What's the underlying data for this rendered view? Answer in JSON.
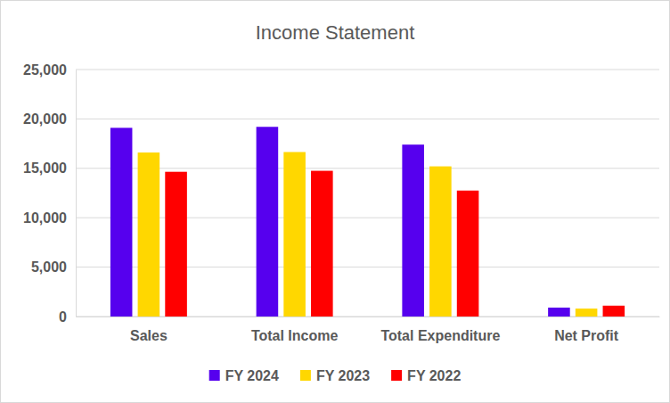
{
  "chart_data": {
    "type": "bar",
    "title": "Income Statement",
    "categories": [
      "Sales",
      "Total Income",
      "Total Expenditure",
      "Net Profit"
    ],
    "series": [
      {
        "name": "FY 2024",
        "color": "#5600EE",
        "values": [
          19100,
          19200,
          17400,
          900
        ]
      },
      {
        "name": "FY 2023",
        "color": "#FFD700",
        "values": [
          16600,
          16650,
          15200,
          800
        ]
      },
      {
        "name": "FY 2022",
        "color": "#FF0000",
        "values": [
          14650,
          14750,
          12750,
          1100
        ]
      }
    ],
    "ylim": [
      0,
      25000
    ],
    "yticks": [
      {
        "value": 0,
        "label": "0"
      },
      {
        "value": 5000,
        "label": "5,000"
      },
      {
        "value": 10000,
        "label": "10,000"
      },
      {
        "value": 15000,
        "label": "15,000"
      },
      {
        "value": 20000,
        "label": "20,000"
      },
      {
        "value": 25000,
        "label": "25,000"
      }
    ],
    "grid": true,
    "legend": "bottom"
  }
}
